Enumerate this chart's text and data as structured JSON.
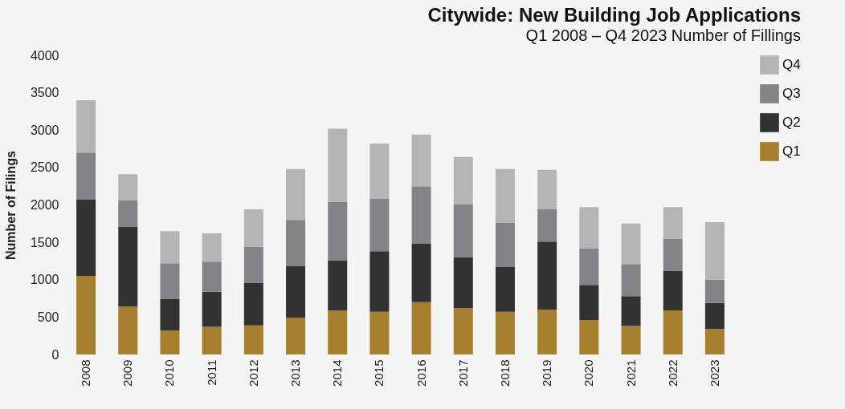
{
  "chart_data": {
    "type": "bar",
    "stacked": true,
    "title": "Citywide: New Building Job Applications",
    "subtitle": "Q1 2008 – Q4 2023 Number of Fillings",
    "ylabel": "Number of Filings",
    "categories": [
      "2008",
      "2009",
      "2010",
      "2011",
      "2012",
      "2013",
      "2014",
      "2015",
      "2016",
      "2017",
      "2018",
      "2019",
      "2020",
      "2021",
      "2022",
      "2023"
    ],
    "series": [
      {
        "name": "Q1",
        "color": "#a67f2e",
        "values": [
          1050,
          640,
          320,
          370,
          390,
          490,
          590,
          570,
          700,
          620,
          570,
          600,
          460,
          380,
          590,
          340
        ]
      },
      {
        "name": "Q2",
        "color": "#323232",
        "values": [
          1020,
          1070,
          420,
          470,
          570,
          690,
          670,
          810,
          780,
          680,
          600,
          910,
          470,
          400,
          530,
          350
        ]
      },
      {
        "name": "Q3",
        "color": "#828386",
        "values": [
          630,
          350,
          480,
          400,
          480,
          620,
          780,
          700,
          770,
          710,
          590,
          430,
          490,
          430,
          430,
          310
        ]
      },
      {
        "name": "Q4",
        "color": "#b2b4b6",
        "values": [
          700,
          350,
          430,
          380,
          500,
          680,
          980,
          740,
          690,
          630,
          720,
          530,
          550,
          540,
          420,
          770
        ]
      }
    ],
    "ylim": [
      0,
      4000
    ],
    "yticks": [
      0,
      500,
      1000,
      1500,
      2000,
      2500,
      3000,
      3500,
      4000
    ],
    "grid": false,
    "legend": "top right"
  }
}
